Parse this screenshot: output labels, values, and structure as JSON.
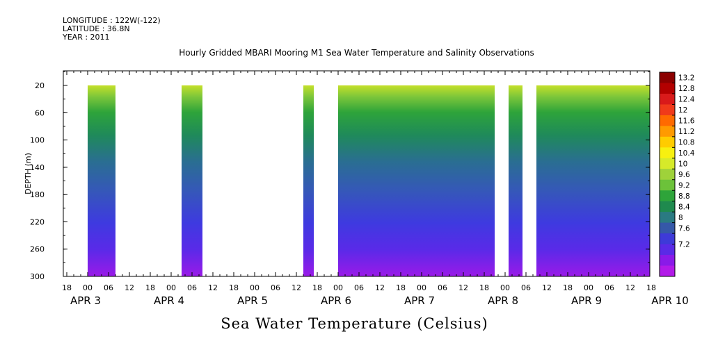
{
  "meta": {
    "longitude": "LONGITUDE : 122W(-122)",
    "latitude": "LATITUDE : 36.8N",
    "year": "YEAR : 2011"
  },
  "chart_data": {
    "type": "heatmap",
    "title": "Hourly Gridded MBARI Mooring M1 Sea Water Temperature and Salinity Observations",
    "xlabel": "Sea Water Temperature (Celsius)",
    "ylabel": "DEPTH (m)",
    "ylim": [
      300,
      0
    ],
    "y_ticks": [
      "20",
      "60",
      "100",
      "140",
      "180",
      "220",
      "260",
      "300"
    ],
    "x_hour_ticks": [
      "18",
      "00",
      "06",
      "12",
      "18",
      "00",
      "06",
      "12",
      "18",
      "00",
      "06",
      "12",
      "18",
      "00",
      "06",
      "12",
      "18",
      "00",
      "06",
      "12",
      "18",
      "00",
      "06",
      "12",
      "18",
      "00",
      "06",
      "12",
      "18",
      "00",
      "06",
      "12"
    ],
    "x_day_labels": [
      "APR  3",
      "APR  4",
      "APR  5",
      "APR  6",
      "APR  7",
      "APR  8",
      "APR  9",
      "APR 10"
    ],
    "colorbar": {
      "levels": [
        "13.2",
        "12.8",
        "12.4",
        "12",
        "11.6",
        "11.2",
        "10.8",
        "10.4",
        "10",
        "9.6",
        "9.2",
        "8.8",
        "8.4",
        "8",
        "7.6",
        "7.2"
      ],
      "colors": [
        "#8b0000",
        "#b30000",
        "#d91a1a",
        "#f03a1a",
        "#ff6a00",
        "#ff9a00",
        "#ffcc00",
        "#f7f010",
        "#d6ea2a",
        "#9fd23a",
        "#6cc23a",
        "#2ea43a",
        "#1f8a4e",
        "#2a7a82",
        "#3558a8",
        "#3e3ad8",
        "#5a2ae6",
        "#8a1ae8",
        "#b21ae8"
      ]
    },
    "data_columns_hours": [
      {
        "start": 0,
        "end": 8
      },
      {
        "start": 27,
        "end": 33
      },
      {
        "start": 62,
        "end": 65
      },
      {
        "start": 72,
        "end": 117
      },
      {
        "start": 121,
        "end": 125
      },
      {
        "start": 129,
        "end": 197
      }
    ],
    "profile_celsius": [
      {
        "depth": 20,
        "temp": 10.4
      },
      {
        "depth": 60,
        "temp": 9.2
      },
      {
        "depth": 100,
        "temp": 8.7
      },
      {
        "depth": 140,
        "temp": 8.4
      },
      {
        "depth": 180,
        "temp": 8.1
      },
      {
        "depth": 220,
        "temp": 7.9
      },
      {
        "depth": 260,
        "temp": 7.6
      },
      {
        "depth": 300,
        "temp": 7.3
      }
    ]
  }
}
